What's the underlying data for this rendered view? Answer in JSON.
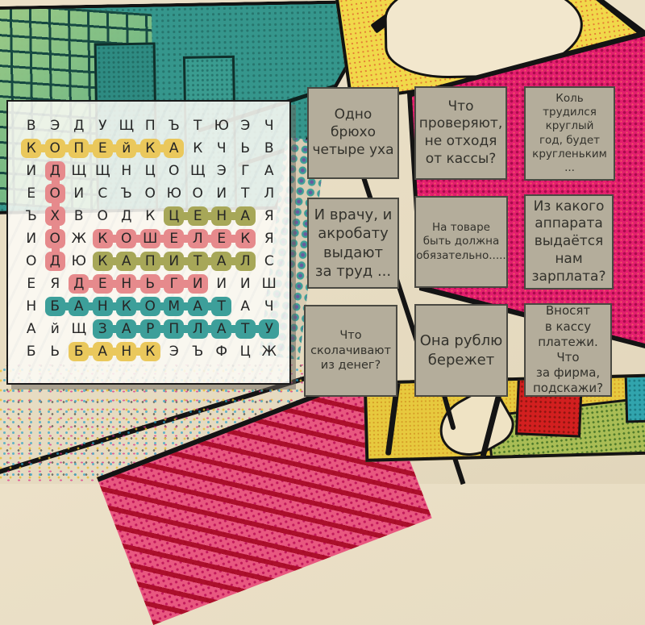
{
  "puzzle": {
    "rows": [
      "ВЭДУЩПЪТЮЭЧ",
      "КОПЕйКАКЧЬВ",
      "ИДЩЩНЦОЩЭГА",
      "ЕОИСЪОЮОИТЛ",
      "ЪХВОДКЦЕНАЯ",
      "ИОЖКОШЕЛЕКЯ",
      "ОДЮКАПИТАЛС",
      "ЕЯДЕНЬГИИИШ",
      "НБАНКОМАТАЧ",
      "АйЩЗАРПЛАТУ",
      "БЬБАНКЭЪФЦЖ"
    ],
    "found_words": [
      {
        "word": "КОПЕЙКА",
        "row": 1,
        "col": 0,
        "dir": "h",
        "color": "yellow"
      },
      {
        "word": "ДОХОД",
        "row": 2,
        "col": 1,
        "dir": "v",
        "color": "pink"
      },
      {
        "word": "ЦЕНА",
        "row": 4,
        "col": 6,
        "dir": "h",
        "color": "olive"
      },
      {
        "word": "КОШЕЛЕК",
        "row": 5,
        "col": 3,
        "dir": "h",
        "color": "pink"
      },
      {
        "word": "КАПИТАЛ",
        "row": 6,
        "col": 3,
        "dir": "h",
        "color": "olive"
      },
      {
        "word": "ДЕНЬГИ",
        "row": 7,
        "col": 2,
        "dir": "h",
        "color": "pink"
      },
      {
        "word": "БАНКОМАТ",
        "row": 8,
        "col": 1,
        "dir": "h",
        "color": "teal"
      },
      {
        "word": "ЗАРПЛАТУ",
        "row": 9,
        "col": 3,
        "dir": "h",
        "color": "teal"
      },
      {
        "word": "БАНК",
        "row": 10,
        "col": 2,
        "dir": "h",
        "color": "yellow"
      }
    ],
    "highlight_colors": {
      "yellow": "#eac85c",
      "pink": "#e68a8c",
      "olive": "#a7a758",
      "teal": "#3d9f9a"
    }
  },
  "clues": [
    {
      "text": "Одно\nбрюхо\nчетыре уха"
    },
    {
      "text": "Что\nпроверяют,\nне отходя\nот кассы?"
    },
    {
      "text": "Коль трудился\nкруглый\nгод, будет\nкругленьким\n..."
    },
    {
      "text": "И врачу, и\nакробату\nвыдают\nза труд ..."
    },
    {
      "text": "На товаре\nбыть должна\nобязательно....."
    },
    {
      "text": "Из какого\nаппарата\nвыдаётся\nнам\nзарплата?"
    },
    {
      "text": "Что\nсколачивают\nиз денег?"
    },
    {
      "text": "Она рублю\nбережет"
    },
    {
      "text": "Вносят\nв кассу\nплатежи. Что\nза фирма,\nподскажи?"
    }
  ]
}
